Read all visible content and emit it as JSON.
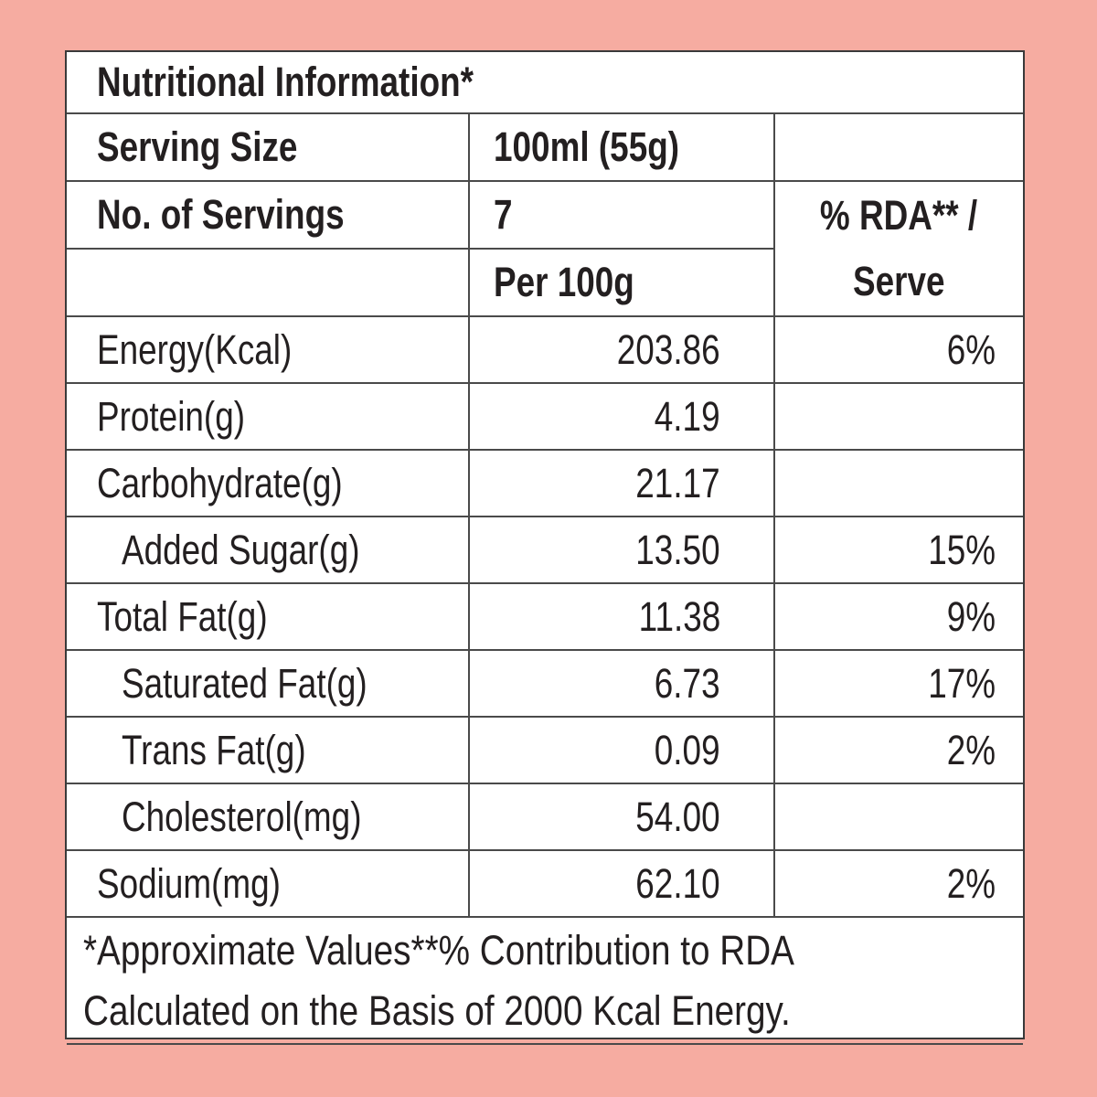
{
  "title": "Nutritional Information*",
  "serving_size_label": "Serving Size",
  "serving_size_value": "100ml (55g)",
  "servings_label": "No. of Servings",
  "servings_value": "7",
  "per_label": "Per 100g",
  "rda_label_line1": "% RDA** /",
  "rda_label_line2": "Serve",
  "rows": [
    {
      "name": "Energy(Kcal)",
      "per100": "203.86",
      "rda": "6%"
    },
    {
      "name": "Protein(g)",
      "per100": "4.19",
      "rda": ""
    },
    {
      "name": "Carbohydrate(g)",
      "per100": "21.17",
      "rda": ""
    },
    {
      "name": "Added Sugar(g)",
      "per100": "13.50",
      "rda": "15%"
    },
    {
      "name": "Total Fat(g)",
      "per100": "11.38",
      "rda": "9%"
    },
    {
      "name": "Saturated Fat(g)",
      "per100": "6.73",
      "rda": "17%"
    },
    {
      "name": "Trans Fat(g)",
      "per100": "0.09",
      "rda": "2%"
    },
    {
      "name": "Cholesterol(mg)",
      "per100": "54.00",
      "rda": ""
    },
    {
      "name": "Sodium(mg)",
      "per100": "62.10",
      "rda": "2%"
    }
  ],
  "footnote_line1": "*Approximate Values**% Contribution to RDA",
  "footnote_line2": "Calculated on the Basis of 2000 Kcal Energy.",
  "colors": {
    "background": "#f6aca1",
    "panel": "#ffffff",
    "text": "#231f20"
  }
}
